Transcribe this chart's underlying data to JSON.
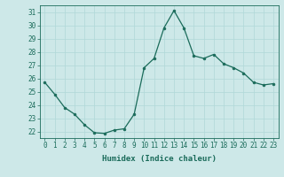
{
  "x": [
    0,
    1,
    2,
    3,
    4,
    5,
    6,
    7,
    8,
    9,
    10,
    11,
    12,
    13,
    14,
    15,
    16,
    17,
    18,
    19,
    20,
    21,
    22,
    23
  ],
  "y": [
    25.7,
    24.8,
    23.8,
    23.3,
    22.5,
    21.9,
    21.85,
    22.1,
    22.2,
    23.3,
    26.8,
    27.5,
    29.8,
    31.1,
    29.8,
    27.7,
    27.5,
    27.8,
    27.1,
    26.8,
    26.4,
    25.7,
    25.5,
    25.6
  ],
  "line_color": "#1a6b5a",
  "marker": "o",
  "marker_size": 2.0,
  "bg_color": "#cde8e8",
  "grid_color": "#b0d8d8",
  "xlabel": "Humidex (Indice chaleur)",
  "xlim": [
    -0.5,
    23.5
  ],
  "ylim": [
    21.5,
    31.5
  ],
  "yticks": [
    22,
    23,
    24,
    25,
    26,
    27,
    28,
    29,
    30,
    31
  ],
  "xticks": [
    0,
    1,
    2,
    3,
    4,
    5,
    6,
    7,
    8,
    9,
    10,
    11,
    12,
    13,
    14,
    15,
    16,
    17,
    18,
    19,
    20,
    21,
    22,
    23
  ],
  "tick_color": "#1a6b5a",
  "label_fontsize": 5.5,
  "xlabel_fontsize": 6.5,
  "axis_color": "#1a6b5a",
  "linewidth": 0.9,
  "grid_linewidth": 0.5
}
